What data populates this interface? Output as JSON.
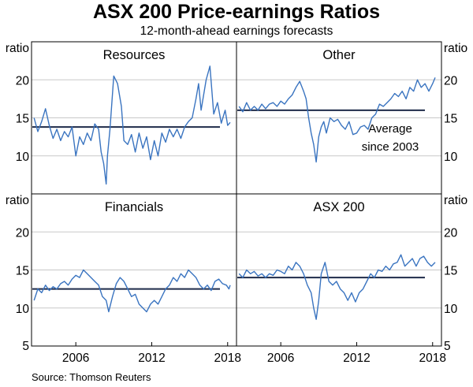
{
  "title": "ASX 200 Price-earnings Ratios",
  "subtitle": "12-month-ahead earnings forecasts",
  "source": "Source:   Thomson Reuters",
  "chart_data": {
    "type": "line",
    "title": "ASX 200 Price-earnings Ratios",
    "subtitle": "12-month-ahead earnings forecasts",
    "ylabel": "ratio",
    "ylim": [
      5,
      25
    ],
    "xlim": [
      2002.5,
      2018.7
    ],
    "yticks": [
      5,
      10,
      15,
      20
    ],
    "xticks": [
      2006,
      2012,
      2018
    ],
    "series_color": "#3a74c0",
    "average_color": "#1f2b4a",
    "panels": [
      {
        "name": "Resources",
        "average": 13.8,
        "x": [
          2002.7,
          2003.0,
          2003.3,
          2003.6,
          2003.9,
          2004.2,
          2004.5,
          2004.8,
          2005.1,
          2005.4,
          2005.7,
          2006.0,
          2006.3,
          2006.6,
          2006.9,
          2007.2,
          2007.5,
          2007.8,
          2008.0,
          2008.2,
          2008.4,
          2008.5,
          2008.7,
          2009.0,
          2009.3,
          2009.6,
          2009.8,
          2010.1,
          2010.4,
          2010.7,
          2011.0,
          2011.3,
          2011.6,
          2011.9,
          2012.2,
          2012.5,
          2012.8,
          2013.1,
          2013.4,
          2013.7,
          2014.0,
          2014.3,
          2014.6,
          2014.9,
          2015.2,
          2015.5,
          2015.7,
          2015.9,
          2016.1,
          2016.3,
          2016.6,
          2016.9,
          2017.2,
          2017.5,
          2017.8,
          2018.0,
          2018.2
        ],
        "values": [
          15.0,
          13.2,
          14.5,
          16.2,
          14.0,
          12.3,
          13.5,
          12.0,
          13.2,
          12.5,
          13.8,
          10.0,
          12.5,
          11.5,
          13.0,
          12.0,
          14.2,
          13.5,
          10.5,
          9.0,
          6.3,
          10.0,
          13.5,
          20.5,
          19.5,
          16.5,
          12.0,
          11.5,
          12.8,
          10.5,
          13.0,
          11.0,
          12.5,
          9.5,
          12.0,
          10.0,
          13.0,
          11.8,
          13.5,
          12.5,
          13.5,
          12.3,
          13.8,
          14.5,
          15.0,
          17.5,
          19.5,
          16.0,
          18.0,
          20.0,
          21.8,
          15.5,
          17.0,
          14.3,
          16.0,
          14.0,
          14.4
        ]
      },
      {
        "name": "Other",
        "average": 16.0,
        "annotation": [
          "Average",
          "since 2003"
        ],
        "x": [
          2002.7,
          2003.0,
          2003.3,
          2003.6,
          2003.9,
          2004.2,
          2004.5,
          2004.8,
          2005.1,
          2005.4,
          2005.7,
          2006.0,
          2006.3,
          2006.6,
          2006.9,
          2007.2,
          2007.5,
          2007.8,
          2008.0,
          2008.2,
          2008.4,
          2008.6,
          2008.8,
          2009.0,
          2009.2,
          2009.4,
          2009.6,
          2009.9,
          2010.2,
          2010.5,
          2010.8,
          2011.1,
          2011.4,
          2011.7,
          2012.0,
          2012.3,
          2012.6,
          2012.9,
          2013.2,
          2013.5,
          2013.8,
          2014.1,
          2014.4,
          2014.7,
          2015.0,
          2015.3,
          2015.6,
          2015.9,
          2016.2,
          2016.5,
          2016.8,
          2017.1,
          2017.4,
          2017.7,
          2018.0,
          2018.2
        ],
        "values": [
          16.5,
          15.8,
          17.0,
          16.0,
          16.5,
          16.0,
          16.8,
          16.2,
          16.8,
          17.0,
          16.5,
          17.2,
          16.8,
          17.5,
          18.0,
          19.0,
          19.8,
          18.5,
          17.5,
          15.0,
          13.0,
          11.5,
          9.2,
          12.5,
          13.8,
          14.5,
          13.0,
          15.0,
          14.5,
          14.8,
          14.0,
          13.5,
          14.5,
          12.8,
          13.0,
          13.8,
          14.0,
          13.5,
          15.0,
          15.5,
          16.8,
          16.5,
          17.0,
          17.5,
          18.2,
          17.8,
          18.5,
          17.5,
          19.0,
          18.5,
          20.0,
          19.0,
          19.5,
          18.5,
          19.5,
          20.3
        ]
      },
      {
        "name": "Financials",
        "average": 12.5,
        "x": [
          2002.7,
          2003.0,
          2003.3,
          2003.6,
          2003.9,
          2004.2,
          2004.5,
          2004.8,
          2005.1,
          2005.4,
          2005.7,
          2006.0,
          2006.3,
          2006.6,
          2006.9,
          2007.2,
          2007.5,
          2007.8,
          2008.1,
          2008.4,
          2008.6,
          2008.9,
          2009.2,
          2009.5,
          2009.8,
          2010.1,
          2010.4,
          2010.7,
          2011.0,
          2011.3,
          2011.6,
          2011.9,
          2012.2,
          2012.5,
          2012.8,
          2013.1,
          2013.4,
          2013.7,
          2014.0,
          2014.3,
          2014.6,
          2014.9,
          2015.2,
          2015.5,
          2015.8,
          2016.1,
          2016.4,
          2016.7,
          2017.0,
          2017.3,
          2017.6,
          2017.9,
          2018.1,
          2018.2
        ],
        "values": [
          11.0,
          12.5,
          12.0,
          13.0,
          12.3,
          12.8,
          12.5,
          13.2,
          13.5,
          13.0,
          13.8,
          14.3,
          14.0,
          15.0,
          14.5,
          14.0,
          13.5,
          13.0,
          11.5,
          11.0,
          9.5,
          11.5,
          13.2,
          14.0,
          13.5,
          12.5,
          11.5,
          11.8,
          10.5,
          10.0,
          9.5,
          10.5,
          11.0,
          10.5,
          11.5,
          12.5,
          13.0,
          14.0,
          13.5,
          14.5,
          14.0,
          15.0,
          14.5,
          14.0,
          13.0,
          12.5,
          13.0,
          12.3,
          13.5,
          13.8,
          13.2,
          13.0,
          12.5,
          13.0
        ]
      },
      {
        "name": "ASX 200",
        "average": 14.0,
        "x": [
          2002.7,
          2003.0,
          2003.3,
          2003.6,
          2003.9,
          2004.2,
          2004.5,
          2004.8,
          2005.1,
          2005.4,
          2005.7,
          2006.0,
          2006.3,
          2006.6,
          2006.9,
          2007.2,
          2007.5,
          2007.8,
          2008.1,
          2008.4,
          2008.6,
          2008.8,
          2009.0,
          2009.2,
          2009.5,
          2009.8,
          2010.1,
          2010.4,
          2010.7,
          2011.0,
          2011.3,
          2011.6,
          2011.9,
          2012.2,
          2012.5,
          2012.8,
          2013.1,
          2013.4,
          2013.7,
          2014.0,
          2014.3,
          2014.6,
          2014.9,
          2015.2,
          2015.5,
          2015.8,
          2016.1,
          2016.4,
          2016.7,
          2017.0,
          2017.3,
          2017.6,
          2017.9,
          2018.2
        ],
        "values": [
          14.5,
          14.0,
          15.0,
          14.5,
          14.8,
          14.2,
          14.5,
          14.0,
          14.5,
          14.3,
          15.0,
          14.8,
          14.5,
          15.5,
          15.0,
          16.0,
          15.5,
          14.5,
          13.0,
          12.0,
          10.0,
          8.5,
          11.0,
          14.5,
          16.0,
          13.5,
          13.0,
          13.5,
          12.5,
          12.0,
          11.0,
          12.0,
          10.8,
          12.0,
          12.5,
          13.5,
          14.5,
          14.0,
          15.0,
          14.8,
          15.5,
          15.0,
          15.8,
          16.0,
          17.0,
          15.5,
          16.0,
          16.5,
          15.5,
          16.5,
          16.8,
          16.0,
          15.5,
          16.0
        ]
      }
    ]
  }
}
